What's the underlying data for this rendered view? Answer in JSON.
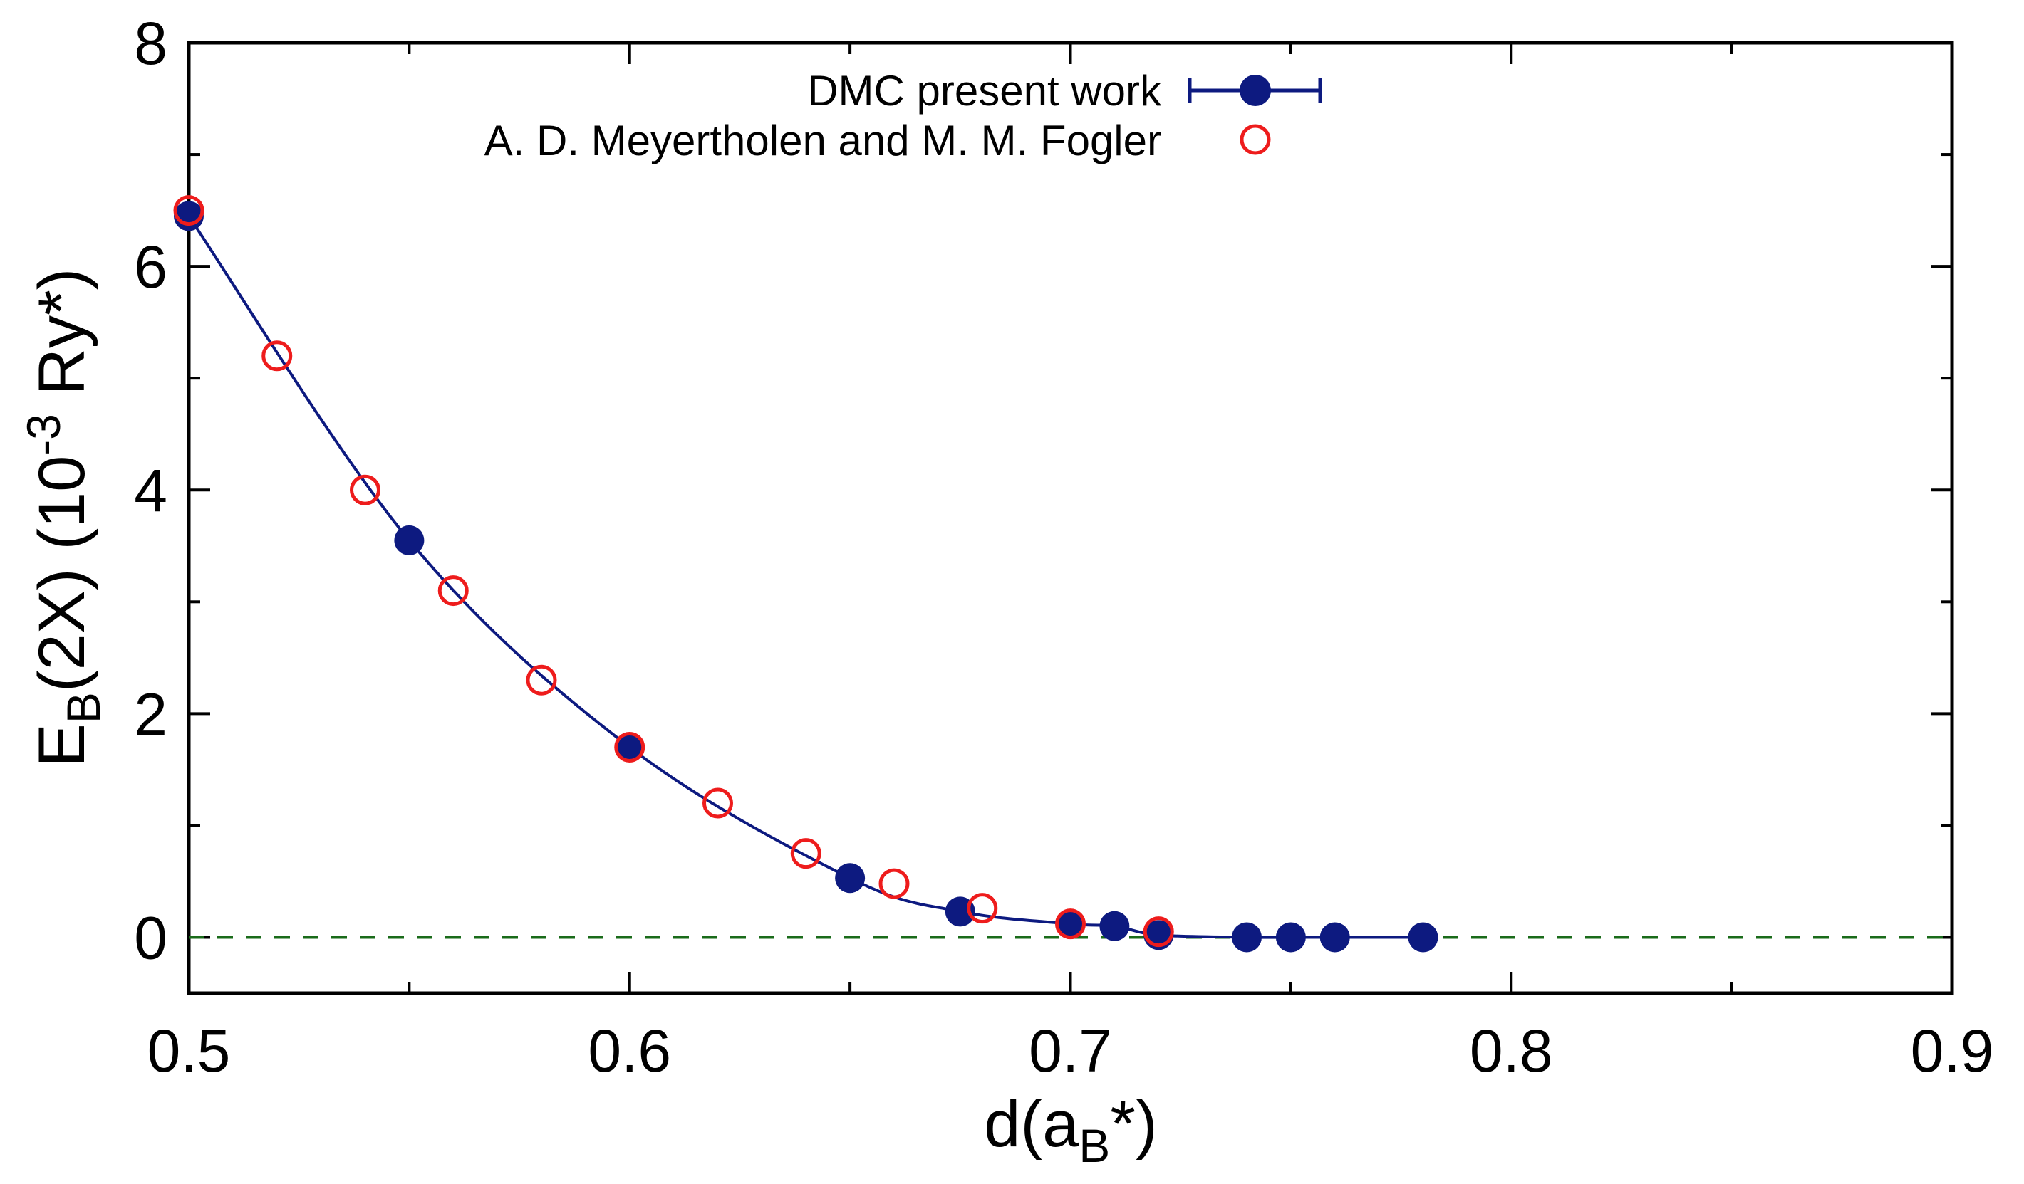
{
  "chart_data": {
    "type": "scatter",
    "title": "",
    "xlabel": {
      "base": "d(a",
      "sub": "B",
      "rest": "*)"
    },
    "ylabel": {
      "e": "E",
      "sub": "B",
      "mid": "(2X) (10",
      "sup": "-3",
      "rest": " Ry*)"
    },
    "xlim": [
      0.5,
      0.9
    ],
    "ylim": [
      -0.5,
      8
    ],
    "xticks": [
      0.5,
      0.6,
      0.7,
      0.8,
      0.9
    ],
    "xtick_labels": [
      "0.5",
      "0.6",
      "0.7",
      "0.8",
      "0.9"
    ],
    "yticks": [
      0,
      2,
      4,
      6,
      8
    ],
    "ytick_labels": [
      "0",
      "2",
      "4",
      "6",
      "8"
    ],
    "x_minor_step": 0.05,
    "y_minor_step": 1,
    "grid": false,
    "legend_position": "top-right",
    "reference_line": {
      "y": 0,
      "style": "dashed",
      "color": "#1a6b1a"
    },
    "series": [
      {
        "name": "DMC present work",
        "marker": "filled-circle",
        "line": true,
        "errorbars": true,
        "color": "#0d1a80",
        "x": [
          0.5,
          0.55,
          0.6,
          0.65,
          0.675,
          0.7,
          0.71,
          0.72,
          0.74,
          0.75,
          0.76,
          0.78
        ],
        "y": [
          6.45,
          3.55,
          1.7,
          0.53,
          0.23,
          0.12,
          0.1,
          0.02,
          0.0,
          0.0,
          0.0,
          0.0
        ]
      },
      {
        "name": "A. D. Meyertholen and M. M. Fogler",
        "marker": "open-circle",
        "line": false,
        "errorbars": false,
        "color": "#ee1c1c",
        "x": [
          0.5,
          0.52,
          0.54,
          0.56,
          0.58,
          0.6,
          0.62,
          0.64,
          0.66,
          0.68,
          0.7,
          0.72
        ],
        "y": [
          6.5,
          5.2,
          4.0,
          3.1,
          2.3,
          1.7,
          1.2,
          0.75,
          0.48,
          0.26,
          0.12,
          0.05
        ]
      }
    ]
  }
}
